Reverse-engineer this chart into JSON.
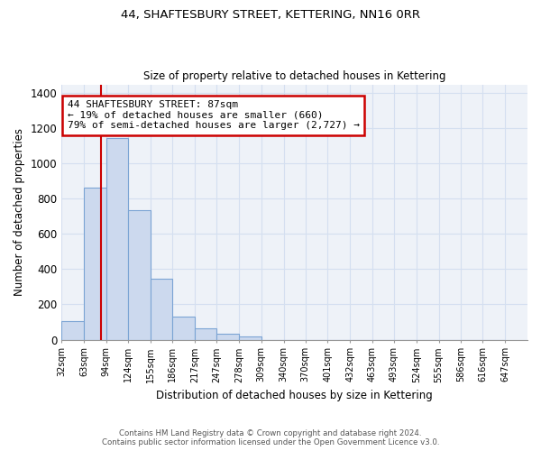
{
  "title_line1": "44, SHAFTESBURY STREET, KETTERING, NN16 0RR",
  "title_line2": "Size of property relative to detached houses in Kettering",
  "xlabel": "Distribution of detached houses by size in Kettering",
  "ylabel": "Number of detached properties",
  "bar_color": "#ccd9ee",
  "bar_edge_color": "#7ba4d4",
  "bin_labels": [
    "32sqm",
    "63sqm",
    "94sqm",
    "124sqm",
    "155sqm",
    "186sqm",
    "217sqm",
    "247sqm",
    "278sqm",
    "309sqm",
    "340sqm",
    "370sqm",
    "401sqm",
    "432sqm",
    "463sqm",
    "493sqm",
    "524sqm",
    "555sqm",
    "586sqm",
    "616sqm",
    "647sqm"
  ],
  "bar_heights": [
    107,
    863,
    1143,
    733,
    345,
    130,
    62,
    32,
    20,
    0,
    0,
    0,
    0,
    0,
    0,
    0,
    0,
    0,
    0,
    0
  ],
  "ylim": [
    0,
    1450
  ],
  "yticks": [
    0,
    200,
    400,
    600,
    800,
    1000,
    1200,
    1400
  ],
  "property_line_x": 87,
  "bin_edges_values": [
    32,
    63,
    94,
    124,
    155,
    186,
    217,
    247,
    278,
    309,
    340,
    370,
    401,
    432,
    463,
    493,
    524,
    555,
    586,
    616,
    647
  ],
  "bin_width": 31,
  "annotation_text": "44 SHAFTESBURY STREET: 87sqm\n← 19% of detached houses are smaller (660)\n79% of semi-detached houses are larger (2,727) →",
  "annotation_box_color": "#ffffff",
  "annotation_box_edge": "#cc0000",
  "red_line_color": "#cc0000",
  "footer_line1": "Contains HM Land Registry data © Crown copyright and database right 2024.",
  "footer_line2": "Contains public sector information licensed under the Open Government Licence v3.0.",
  "background_color": "#ffffff",
  "grid_color": "#d4dff0",
  "axes_bg_color": "#eef2f8"
}
